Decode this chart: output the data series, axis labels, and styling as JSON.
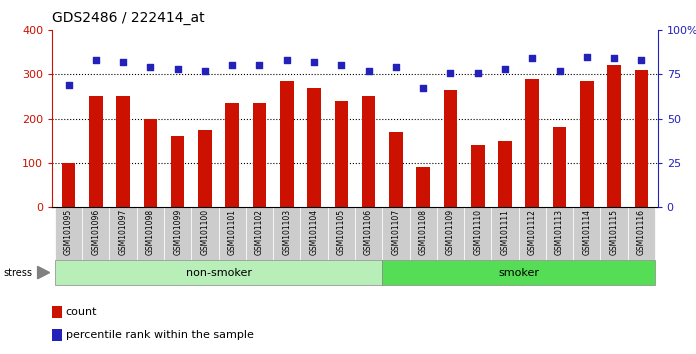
{
  "title": "GDS2486 / 222414_at",
  "samples": [
    "GSM101095",
    "GSM101096",
    "GSM101097",
    "GSM101098",
    "GSM101099",
    "GSM101100",
    "GSM101101",
    "GSM101102",
    "GSM101103",
    "GSM101104",
    "GSM101105",
    "GSM101106",
    "GSM101107",
    "GSM101108",
    "GSM101109",
    "GSM101110",
    "GSM101111",
    "GSM101112",
    "GSM101113",
    "GSM101114",
    "GSM101115",
    "GSM101116"
  ],
  "counts": [
    100,
    250,
    250,
    200,
    160,
    175,
    235,
    235,
    285,
    270,
    240,
    250,
    170,
    90,
    265,
    140,
    150,
    290,
    180,
    285,
    320,
    310
  ],
  "percentile_ranks": [
    69,
    83,
    82,
    79,
    78,
    77,
    80,
    80,
    83,
    82,
    80,
    77,
    79,
    67,
    76,
    76,
    78,
    84,
    77,
    85,
    84,
    83
  ],
  "non_smoker_count": 12,
  "smoker_count": 10,
  "non_smoker_color": "#B8EFB8",
  "smoker_color": "#55DD55",
  "bar_color": "#CC1100",
  "dot_color": "#2222BB",
  "left_ylim": [
    0,
    400
  ],
  "right_ylim": [
    0,
    100
  ],
  "left_yticks": [
    0,
    100,
    200,
    300,
    400
  ],
  "right_yticks": [
    0,
    25,
    50,
    75,
    100
  ],
  "right_yticklabels": [
    "0",
    "25",
    "50",
    "75",
    "100%"
  ],
  "hline_values": [
    100,
    200,
    300
  ],
  "title_fontsize": 10,
  "tick_label_fontsize": 5.5,
  "axis_tick_fontsize": 8,
  "group_label_fontsize": 8,
  "legend_fontsize": 8,
  "stress_label": "stress",
  "non_smoker_label": "non-smoker",
  "smoker_label": "smoker",
  "count_legend": "count",
  "pct_legend": "percentile rank within the sample",
  "cell_bg_color_odd": "#CCCCCC",
  "cell_bg_color_even": "#BBBBBB",
  "bg_color": "#FFFFFF"
}
